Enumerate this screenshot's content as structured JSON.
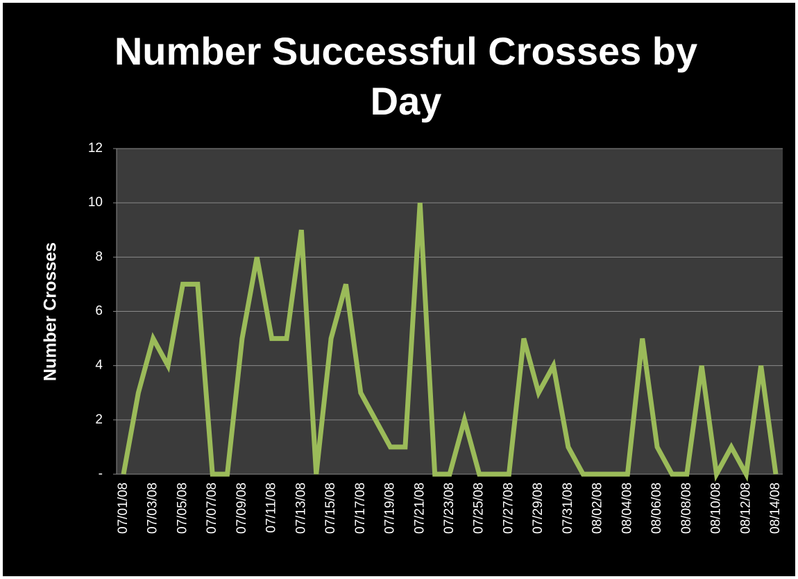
{
  "chart_data": {
    "type": "line",
    "title": "Number Successful Crosses by Day",
    "y_label": "Number Crosses",
    "categories": [
      "07/01/08",
      null,
      "07/03/08",
      null,
      "07/05/08",
      null,
      "07/07/08",
      null,
      "07/09/08",
      null,
      "07/11/08",
      null,
      "07/13/08",
      null,
      "07/15/08",
      null,
      "07/17/08",
      null,
      "07/19/08",
      null,
      "07/21/08",
      null,
      "07/23/08",
      null,
      "07/25/08",
      null,
      "07/27/08",
      null,
      "07/29/08",
      null,
      "07/31/08",
      null,
      "08/02/08",
      null,
      "08/04/08",
      null,
      "08/06/08",
      null,
      "08/08/08",
      null,
      "08/10/08",
      null,
      "08/12/08",
      null,
      "08/14/08"
    ],
    "values": [
      0,
      3,
      5,
      4,
      7,
      7,
      0,
      0,
      5,
      8,
      5,
      5,
      9,
      0,
      5,
      7,
      3,
      2,
      1,
      1,
      10,
      0,
      0,
      2,
      0,
      0,
      0,
      5,
      3,
      4,
      1,
      0,
      0,
      0,
      0,
      5,
      1,
      0,
      0,
      4,
      0,
      1,
      0,
      4,
      0
    ],
    "color": "#9bbb59",
    "ylim": [
      0,
      12
    ],
    "yticks": [
      {
        "value": 0,
        "label": "-"
      },
      2,
      4,
      6,
      8,
      10,
      12
    ],
    "grid": true
  }
}
